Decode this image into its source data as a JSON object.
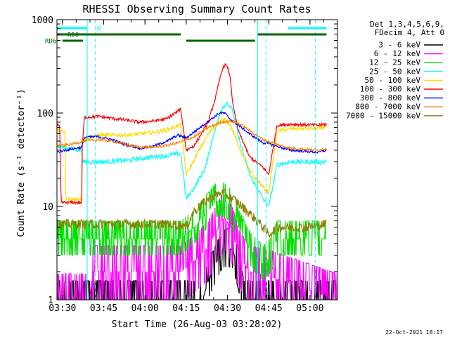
{
  "chart_data": {
    "type": "line",
    "title": "RHESSI Observing Summary Count Rates",
    "xlabel": "Start Time (26-Aug-03 03:28:02)",
    "ylabel": "Count Rate (s⁻¹ detector⁻¹)",
    "x_unit": "minutes after 03:28:02",
    "xlim": [
      0,
      102
    ],
    "ylim": [
      1,
      1000
    ],
    "yscale": "log",
    "x_ticks": [
      {
        "label": "03:30",
        "value": 2
      },
      {
        "label": "03:45",
        "value": 17
      },
      {
        "label": "04:00",
        "value": 32
      },
      {
        "label": "04:15",
        "value": 47
      },
      {
        "label": "04:30",
        "value": 62
      },
      {
        "label": "04:45",
        "value": 77
      },
      {
        "label": "05:00",
        "value": 92
      }
    ],
    "y_ticks": [
      {
        "label": "1",
        "value": 1
      },
      {
        "label": "10",
        "value": 10
      },
      {
        "label": "100",
        "value": 100
      },
      {
        "label": "1000",
        "value": 1000
      }
    ],
    "legend_header": [
      "Det 1,3,4,5,6,9,",
      "FDecim 4, Att 0"
    ],
    "legend_position": "outside-right",
    "series": [
      {
        "name": "3 - 6 keV",
        "color": "#000000",
        "noise": 0.6,
        "points": [
          [
            0,
            1
          ],
          [
            53,
            1
          ],
          [
            55,
            1.6
          ],
          [
            58,
            2.5
          ],
          [
            60,
            3.4
          ],
          [
            62,
            3.6
          ],
          [
            64,
            3.4
          ],
          [
            66,
            2
          ],
          [
            68,
            1
          ],
          [
            102,
            1
          ]
        ]
      },
      {
        "name": "6 - 12 keV",
        "color": "#ff00ff",
        "noise": 0.9,
        "points": [
          [
            0,
            1
          ],
          [
            12,
            1
          ],
          [
            13,
            2
          ],
          [
            35,
            2
          ],
          [
            45,
            2
          ],
          [
            50,
            2.6
          ],
          [
            55,
            3.6
          ],
          [
            58,
            5.5
          ],
          [
            60,
            7
          ],
          [
            61,
            7.6
          ],
          [
            62,
            6.8
          ],
          [
            64,
            5
          ],
          [
            66,
            3
          ],
          [
            70,
            2
          ],
          [
            77,
            1.8
          ],
          [
            82,
            1.6
          ],
          [
            102,
            1
          ]
        ]
      },
      {
        "name": "12 - 25 keV",
        "color": "#00e000",
        "noise": 0.55,
        "points": [
          [
            0,
            4.5
          ],
          [
            9,
            4.5
          ],
          [
            10,
            4.5
          ],
          [
            35,
            4.5
          ],
          [
            45,
            4.5
          ],
          [
            50,
            6
          ],
          [
            55,
            9
          ],
          [
            58,
            11.5
          ],
          [
            60,
            11.8
          ],
          [
            62,
            11
          ],
          [
            64,
            9
          ],
          [
            66,
            6
          ],
          [
            70,
            3.5
          ],
          [
            75,
            2.4
          ],
          [
            78,
            3
          ],
          [
            80,
            4.5
          ],
          [
            97,
            4.5
          ],
          [
            98,
            4.5
          ]
        ]
      },
      {
        "name": "25 - 50 keV",
        "color": "#00ffff",
        "noise": 0.06,
        "points": [
          [
            0,
            44
          ],
          [
            9,
            40
          ],
          [
            9.1,
            30
          ],
          [
            16,
            30
          ],
          [
            25,
            31
          ],
          [
            35,
            34
          ],
          [
            40,
            35
          ],
          [
            45,
            37
          ],
          [
            47,
            12
          ],
          [
            50,
            16
          ],
          [
            54,
            26
          ],
          [
            57,
            60
          ],
          [
            60,
            115
          ],
          [
            62,
            130
          ],
          [
            64,
            105
          ],
          [
            66,
            55
          ],
          [
            70,
            22
          ],
          [
            75,
            12
          ],
          [
            77,
            10
          ],
          [
            80,
            28
          ],
          [
            85,
            30
          ],
          [
            95,
            30
          ],
          [
            98,
            30
          ]
        ]
      },
      {
        "name": "50 - 100 keV",
        "color": "#ffdd00",
        "noise": 0.05,
        "points": [
          [
            0,
            66
          ],
          [
            3,
            62
          ],
          [
            3.1,
            12
          ],
          [
            9,
            12
          ],
          [
            9.1,
            52
          ],
          [
            15,
            58
          ],
          [
            25,
            58
          ],
          [
            35,
            62
          ],
          [
            40,
            66
          ],
          [
            45,
            75
          ],
          [
            47,
            22
          ],
          [
            50,
            32
          ],
          [
            55,
            60
          ],
          [
            59,
            82
          ],
          [
            61,
            85
          ],
          [
            63,
            76
          ],
          [
            66,
            45
          ],
          [
            70,
            24
          ],
          [
            75,
            16
          ],
          [
            77,
            14
          ],
          [
            80,
            64
          ],
          [
            85,
            68
          ],
          [
            95,
            68
          ],
          [
            98,
            72
          ]
        ]
      },
      {
        "name": "100 - 300 keV",
        "color": "#ff0000",
        "noise": 0.04,
        "points": [
          [
            0,
            76
          ],
          [
            1,
            70
          ],
          [
            1.5,
            11
          ],
          [
            9,
            11
          ],
          [
            9.1,
            40
          ],
          [
            10,
            90
          ],
          [
            15,
            92
          ],
          [
            25,
            84
          ],
          [
            30,
            80
          ],
          [
            35,
            82
          ],
          [
            40,
            87
          ],
          [
            45,
            110
          ],
          [
            47,
            40
          ],
          [
            50,
            45
          ],
          [
            55,
            80
          ],
          [
            58,
            160
          ],
          [
            60,
            290
          ],
          [
            61,
            330
          ],
          [
            62,
            310
          ],
          [
            63,
            240
          ],
          [
            64,
            120
          ],
          [
            66,
            64
          ],
          [
            70,
            34
          ],
          [
            75,
            26
          ],
          [
            77,
            22
          ],
          [
            80,
            74
          ],
          [
            85,
            76
          ],
          [
            95,
            74
          ],
          [
            98,
            76
          ]
        ]
      },
      {
        "name": "300 - 800 keV",
        "color": "#0000ff",
        "noise": 0.03,
        "points": [
          [
            0,
            38
          ],
          [
            3,
            40
          ],
          [
            9,
            43
          ],
          [
            10,
            55
          ],
          [
            15,
            56
          ],
          [
            20,
            52
          ],
          [
            25,
            46
          ],
          [
            30,
            42
          ],
          [
            35,
            44
          ],
          [
            40,
            50
          ],
          [
            44,
            58
          ],
          [
            47,
            54
          ],
          [
            52,
            70
          ],
          [
            57,
            90
          ],
          [
            59,
            100
          ],
          [
            61,
            100
          ],
          [
            63,
            86
          ],
          [
            66,
            74
          ],
          [
            70,
            60
          ],
          [
            75,
            48
          ],
          [
            77,
            47
          ],
          [
            80,
            44
          ],
          [
            85,
            40
          ],
          [
            95,
            38
          ],
          [
            98,
            40
          ]
        ]
      },
      {
        "name": "800 - 7000 keV",
        "color": "#ff8000",
        "noise": 0.03,
        "points": [
          [
            0,
            45
          ],
          [
            5,
            46
          ],
          [
            10,
            50
          ],
          [
            15,
            52
          ],
          [
            20,
            50
          ],
          [
            25,
            46
          ],
          [
            30,
            43
          ],
          [
            35,
            43
          ],
          [
            40,
            45
          ],
          [
            45,
            49
          ],
          [
            50,
            56
          ],
          [
            55,
            70
          ],
          [
            60,
            80
          ],
          [
            63,
            82
          ],
          [
            66,
            78
          ],
          [
            70,
            65
          ],
          [
            75,
            52
          ],
          [
            80,
            46
          ],
          [
            85,
            42
          ],
          [
            95,
            40
          ],
          [
            98,
            42
          ]
        ]
      },
      {
        "name": "7000 - 15000 keV",
        "color": "#8b8000",
        "noise": 0.12,
        "points": [
          [
            0,
            6.5
          ],
          [
            9,
            6.5
          ],
          [
            10,
            6.5
          ],
          [
            20,
            6.5
          ],
          [
            35,
            6.5
          ],
          [
            45,
            6.4
          ],
          [
            47,
            6
          ],
          [
            50,
            9
          ],
          [
            55,
            12
          ],
          [
            58,
            13.5
          ],
          [
            60,
            14
          ],
          [
            62,
            13
          ],
          [
            65,
            11.5
          ],
          [
            70,
            8.5
          ],
          [
            75,
            6
          ],
          [
            77,
            5
          ],
          [
            80,
            6
          ],
          [
            90,
            6
          ],
          [
            98,
            6.5
          ]
        ]
      }
    ],
    "flags": [
      {
        "name": "N",
        "color": "#00ffff",
        "level": 1,
        "intervals": [
          [
            0,
            11
          ],
          [
            84,
            98
          ]
        ]
      },
      {
        "name": "RD0",
        "color": "#006600",
        "level": 2,
        "intervals": [
          [
            0,
            45
          ],
          [
            73,
            98
          ]
        ]
      },
      {
        "name": "RD6",
        "color": "#006600",
        "level": 3,
        "intervals": [
          [
            2,
            9.5
          ],
          [
            47,
            72
          ]
        ]
      }
    ],
    "orbit_markers": {
      "solid": [
        11,
        73
      ],
      "dashed": [
        14,
        76,
        94
      ],
      "color": "#00ffff"
    }
  },
  "footer_date": "22-Oct-2021 18:17"
}
